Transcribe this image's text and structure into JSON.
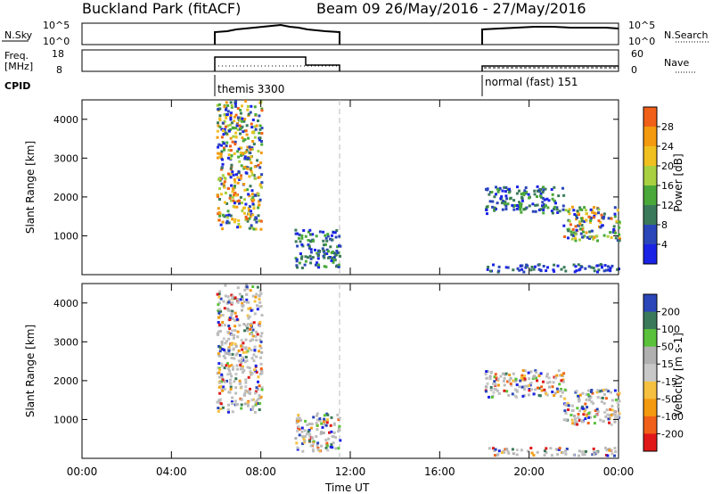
{
  "header": {
    "title": "Buckland Park (fitACF)",
    "beam_info": "Beam 09  26/May/2016 - 27/May/2016"
  },
  "noise_panel": {
    "left_label": "N.Sky",
    "left_ticks": [
      "10^5",
      "10^0"
    ],
    "right_label": "N.Search",
    "right_ticks": [
      "10^5",
      "10^0"
    ]
  },
  "freq_panel": {
    "left_label_line1": "Freq.",
    "left_label_line2": "[MHz]",
    "left_ticks": [
      "18",
      "8"
    ],
    "right_label": "Nave",
    "right_ticks": [
      "60",
      "0"
    ]
  },
  "cpid": {
    "label": "CPID",
    "segments": [
      "themis 3300",
      "normal (fast) 151"
    ]
  },
  "colors": {
    "power_scale": [
      "#1a22e6",
      "#2a46b8",
      "#3a7a5a",
      "#4aa83a",
      "#a8d040",
      "#f0c020",
      "#f39a10",
      "#f06018",
      "#e02010"
    ],
    "velocity_scale": [
      "#e01818",
      "#f06018",
      "#f39a10",
      "#f5c040",
      "#c8c8c8",
      "#b0b0b0",
      "#5ac23a",
      "#3a7a5a",
      "#2a46b8",
      "#1a22e6"
    ],
    "ground_scatter": "#bdbdbd",
    "axis": "#000000"
  },
  "chart_data": [
    {
      "type": "heatmap",
      "title": "Power",
      "xlabel": "Time UT",
      "ylabel": "Slant Range [km]",
      "xlim": [
        "00:00",
        "24:00"
      ],
      "ylim": [
        0,
        4500
      ],
      "y_ticks": [
        1000,
        2000,
        3000,
        4000
      ],
      "y_tick_labels": [
        "1000",
        "2000",
        "3000",
        "4000"
      ],
      "colorbar": {
        "label": "Power [dB]",
        "ticks": [
          "4",
          "8",
          "12",
          "16",
          "20",
          "24",
          "28"
        ],
        "range": [
          0,
          30
        ]
      },
      "echo_regions": [
        {
          "time_start": "06:00",
          "time_end": "08:00",
          "range_start": 1200,
          "range_end": 4500,
          "peak_power_db": 28
        },
        {
          "time_start": "09:30",
          "time_end": "11:30",
          "range_start": 200,
          "range_end": 1200,
          "peak_power_db": 12
        },
        {
          "time_start": "18:00",
          "time_end": "21:30",
          "range_start": 1600,
          "range_end": 2300,
          "peak_power_db": 12
        },
        {
          "time_start": "21:30",
          "time_end": "24:00",
          "range_start": 900,
          "range_end": 1800,
          "peak_power_db": 28
        },
        {
          "time_start": "18:00",
          "time_end": "24:00",
          "range_start": 100,
          "range_end": 300,
          "peak_power_db": 8
        }
      ]
    },
    {
      "type": "heatmap",
      "title": "Velocity",
      "xlabel": "Time UT",
      "ylabel": "Slant Range [km]",
      "xlim": [
        "00:00",
        "24:00"
      ],
      "ylim": [
        0,
        4500
      ],
      "y_ticks": [
        1000,
        2000,
        3000,
        4000
      ],
      "y_tick_labels": [
        "1000",
        "2000",
        "3000",
        "4000"
      ],
      "colorbar": {
        "label": "Velocity [m s-1]",
        "ticks": [
          "-200",
          "-100",
          "-50",
          "-15",
          "15",
          "50",
          "100",
          "200"
        ]
      },
      "x_ticks": [
        "00:00",
        "04:00",
        "08:00",
        "12:00",
        "16:00",
        "20:00",
        "00:00"
      ]
    }
  ]
}
